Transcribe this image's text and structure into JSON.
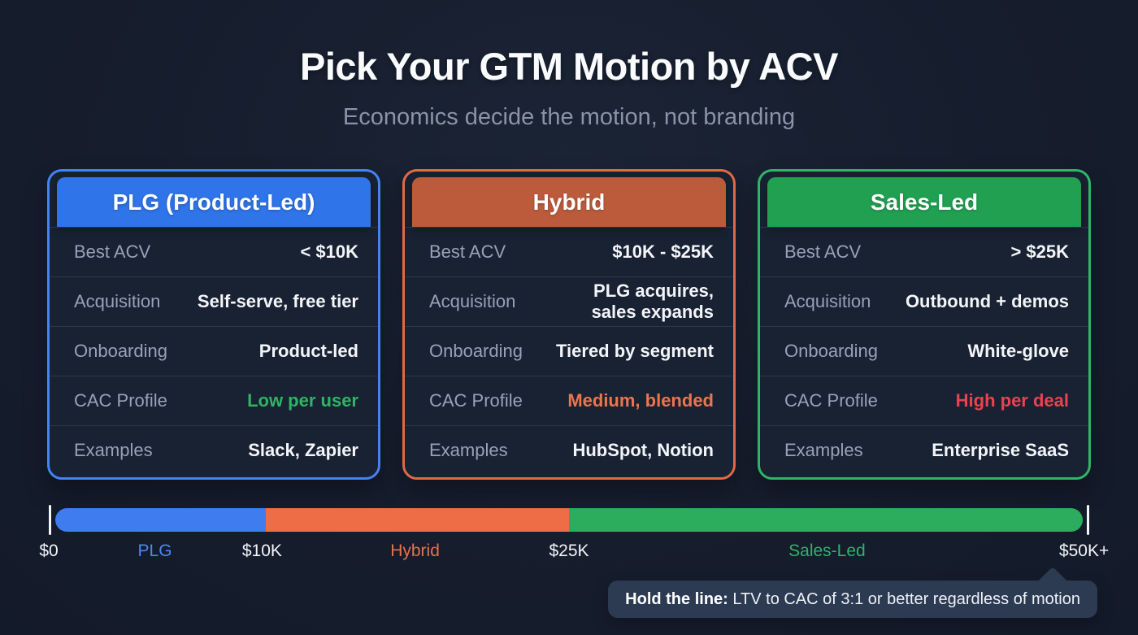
{
  "slide": {
    "title": "Pick Your GTM Motion by ACV",
    "subtitle": "Economics decide the motion, not branding",
    "background_color": "#161d2d"
  },
  "cards": [
    {
      "id": "plg",
      "title": "PLG (Product-Led)",
      "border_color": "#4583f2",
      "header_color": "#2f74e8",
      "rows": [
        {
          "label": "Best ACV",
          "value": "< $10K"
        },
        {
          "label": "Acquisition",
          "value": "Self-serve, free tier"
        },
        {
          "label": "Onboarding",
          "value": "Product-led"
        },
        {
          "label": "CAC Profile",
          "value": "Low per user",
          "value_color": "#2fb465"
        },
        {
          "label": "Examples",
          "value": "Slack, Zapier"
        }
      ]
    },
    {
      "id": "hybrid",
      "title": "Hybrid",
      "border_color": "#e06a45",
      "header_color": "#bb5b3c",
      "rows": [
        {
          "label": "Best ACV",
          "value": "$10K - $25K"
        },
        {
          "label": "Acquisition",
          "value": "PLG acquires,\nsales expands"
        },
        {
          "label": "Onboarding",
          "value": "Tiered by segment"
        },
        {
          "label": "CAC Profile",
          "value": "Medium, blended",
          "value_color": "#e9764f"
        },
        {
          "label": "Examples",
          "value": "HubSpot, Notion"
        }
      ]
    },
    {
      "id": "sales-led",
      "title": "Sales-Led",
      "border_color": "#2fb568",
      "header_color": "#21a052",
      "rows": [
        {
          "label": "Best ACV",
          "value": "> $25K"
        },
        {
          "label": "Acquisition",
          "value": "Outbound + demos"
        },
        {
          "label": "Onboarding",
          "value": "White-glove"
        },
        {
          "label": "CAC Profile",
          "value": "High per deal",
          "value_color": "#ea4250"
        },
        {
          "label": "Examples",
          "value": "Enterprise SaaS"
        }
      ]
    }
  ],
  "scale": {
    "min_label": "$0",
    "max_label": "$50K+",
    "segments": [
      {
        "name": "PLG",
        "color": "#3e7cf0",
        "width_pct": 20.5
      },
      {
        "name": "Hybrid",
        "color": "#ee6d46",
        "width_pct": 29.5
      },
      {
        "name": "Sales-Led",
        "color": "#2cac5d",
        "width_pct": 50
      }
    ],
    "labels": [
      {
        "text": "$0",
        "pos_pct": 0,
        "color": "#f2f4f8"
      },
      {
        "text": "PLG",
        "pos_pct": 10.2,
        "color": "#4c87f2"
      },
      {
        "text": "$10K",
        "pos_pct": 20.5,
        "color": "#f2f4f8"
      },
      {
        "text": "Hybrid",
        "pos_pct": 35.2,
        "color": "#e4724d"
      },
      {
        "text": "$25K",
        "pos_pct": 50,
        "color": "#f2f4f8"
      },
      {
        "text": "Sales-Led",
        "pos_pct": 74.8,
        "color": "#31b368"
      },
      {
        "text": "$50K+",
        "pos_pct": 99.5,
        "color": "#f2f4f8"
      }
    ]
  },
  "callout": {
    "bold_text": "Hold the line:",
    "text": "LTV to CAC of 3:1 or better regardless of motion"
  }
}
